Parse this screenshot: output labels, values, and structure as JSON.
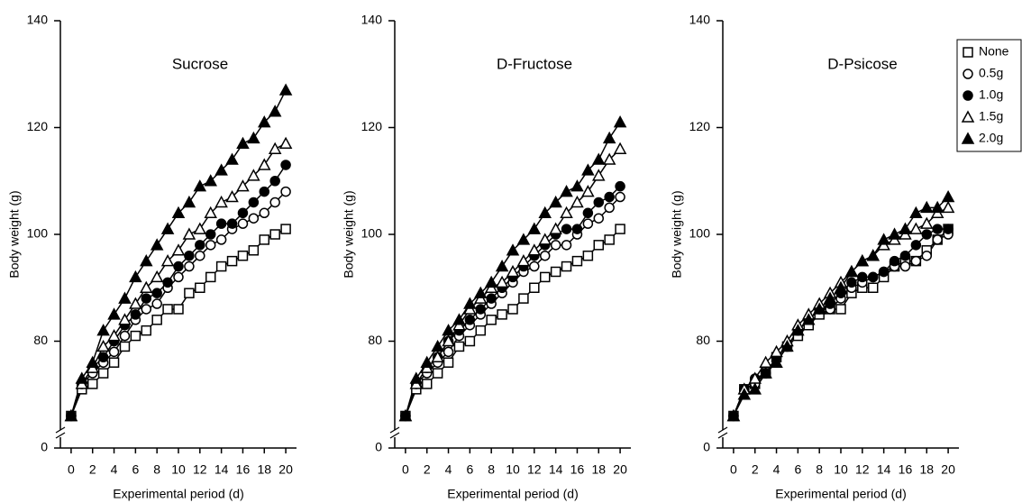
{
  "chart_data": [
    {
      "type": "line",
      "title": "Sucrose",
      "xlabel": "Experimental period (d)",
      "ylabel": "Body weight (g)",
      "x": [
        0,
        1,
        2,
        3,
        4,
        5,
        6,
        7,
        8,
        9,
        10,
        11,
        12,
        13,
        14,
        15,
        16,
        17,
        18,
        19,
        20
      ],
      "xlim": [
        -1,
        21
      ],
      "xticks": [
        0,
        2,
        4,
        6,
        8,
        10,
        12,
        14,
        16,
        18,
        20
      ],
      "ylim": [
        0,
        140
      ],
      "yticks": [
        0,
        80,
        100,
        120,
        140
      ],
      "axis_break": [
        0,
        60
      ],
      "series": [
        {
          "marker": "square",
          "filled": false,
          "color": "#000000",
          "values": [
            66,
            71,
            72,
            74,
            76,
            79,
            81,
            82,
            84,
            86,
            86,
            89,
            90,
            92,
            94,
            95,
            96,
            97,
            99,
            100,
            101
          ]
        },
        {
          "marker": "circle",
          "filled": false,
          "color": "#000000",
          "values": [
            66,
            72,
            74,
            76,
            78,
            81,
            84,
            86,
            87,
            90,
            92,
            94,
            96,
            98,
            99,
            101,
            102,
            103,
            104,
            106,
            108
          ]
        },
        {
          "marker": "circle",
          "filled": true,
          "color": "#000000",
          "values": [
            66,
            72,
            75,
            77,
            80,
            83,
            85,
            88,
            89,
            91,
            94,
            96,
            98,
            100,
            102,
            102,
            104,
            106,
            108,
            110,
            113
          ]
        },
        {
          "marker": "triangle",
          "filled": false,
          "color": "#000000",
          "values": [
            66,
            72,
            75,
            79,
            81,
            84,
            87,
            90,
            92,
            95,
            97,
            100,
            101,
            104,
            106,
            107,
            109,
            111,
            113,
            116,
            117
          ]
        },
        {
          "marker": "triangle",
          "filled": true,
          "color": "#000000",
          "values": [
            66,
            73,
            76,
            82,
            85,
            88,
            92,
            95,
            98,
            101,
            104,
            106,
            109,
            110,
            112,
            114,
            117,
            118,
            121,
            123,
            127
          ]
        }
      ]
    },
    {
      "type": "line",
      "title": "D-Fructose",
      "xlabel": "Experimental period (d)",
      "ylabel": "Body weight (g)",
      "x": [
        0,
        1,
        2,
        3,
        4,
        5,
        6,
        7,
        8,
        9,
        10,
        11,
        12,
        13,
        14,
        15,
        16,
        17,
        18,
        19,
        20
      ],
      "xlim": [
        -1,
        21
      ],
      "xticks": [
        0,
        2,
        4,
        6,
        8,
        10,
        12,
        14,
        16,
        18,
        20
      ],
      "ylim": [
        0,
        140
      ],
      "yticks": [
        0,
        80,
        100,
        120,
        140
      ],
      "axis_break": [
        0,
        60
      ],
      "series": [
        {
          "marker": "square",
          "filled": false,
          "color": "#000000",
          "values": [
            66,
            71,
            72,
            74,
            76,
            79,
            80,
            82,
            84,
            85,
            86,
            88,
            90,
            92,
            93,
            94,
            95,
            96,
            98,
            99,
            101
          ]
        },
        {
          "marker": "circle",
          "filled": false,
          "color": "#000000",
          "values": [
            66,
            72,
            74,
            76,
            78,
            81,
            83,
            85,
            87,
            89,
            91,
            93,
            94,
            96,
            98,
            98,
            100,
            102,
            103,
            105,
            107
          ]
        },
        {
          "marker": "circle",
          "filled": true,
          "color": "#000000",
          "values": [
            66,
            72,
            75,
            77,
            80,
            82,
            84,
            86,
            88,
            90,
            92,
            94,
            96,
            98,
            100,
            101,
            101,
            104,
            106,
            107,
            109
          ]
        },
        {
          "marker": "triangle",
          "filled": false,
          "color": "#000000",
          "values": [
            66,
            72,
            75,
            77,
            80,
            83,
            86,
            88,
            90,
            91,
            93,
            95,
            97,
            99,
            101,
            104,
            106,
            108,
            111,
            114,
            116
          ]
        },
        {
          "marker": "triangle",
          "filled": true,
          "color": "#000000",
          "values": [
            66,
            73,
            76,
            79,
            82,
            84,
            87,
            89,
            91,
            94,
            97,
            99,
            101,
            104,
            106,
            108,
            109,
            112,
            114,
            118,
            121
          ]
        }
      ]
    },
    {
      "type": "line",
      "title": "D-Psicose",
      "xlabel": "Experimental period (d)",
      "ylabel": "Body weight (g)",
      "x": [
        0,
        1,
        2,
        3,
        4,
        5,
        6,
        7,
        8,
        9,
        10,
        11,
        12,
        13,
        14,
        15,
        16,
        17,
        18,
        19,
        20
      ],
      "xlim": [
        -1,
        21
      ],
      "xticks": [
        0,
        2,
        4,
        6,
        8,
        10,
        12,
        14,
        16,
        18,
        20
      ],
      "ylim": [
        0,
        140
      ],
      "yticks": [
        0,
        80,
        100,
        120,
        140
      ],
      "axis_break": [
        0,
        60
      ],
      "legend": "upper right",
      "series": [
        {
          "name": "None",
          "marker": "square",
          "filled": false,
          "color": "#000000",
          "values": [
            66,
            71,
            72,
            74,
            77,
            79,
            81,
            83,
            85,
            86,
            86,
            89,
            90,
            90,
            92,
            94,
            95,
            95,
            97,
            99,
            101
          ]
        },
        {
          "name": "0.5g",
          "marker": "circle",
          "filled": false,
          "color": "#000000",
          "values": [
            66,
            71,
            72,
            74,
            77,
            79,
            82,
            84,
            86,
            86,
            88,
            90,
            91,
            92,
            93,
            94,
            94,
            95,
            96,
            99,
            100
          ]
        },
        {
          "name": "1.0g",
          "marker": "circle",
          "filled": true,
          "color": "#000000",
          "values": [
            66,
            71,
            73,
            74,
            77,
            79,
            82,
            84,
            86,
            87,
            89,
            91,
            92,
            92,
            93,
            95,
            96,
            98,
            100,
            101,
            101
          ]
        },
        {
          "name": "1.5g",
          "marker": "triangle",
          "filled": false,
          "color": "#000000",
          "values": [
            66,
            71,
            73,
            76,
            78,
            80,
            83,
            85,
            87,
            89,
            91,
            93,
            95,
            96,
            98,
            99,
            100,
            101,
            102,
            104,
            105
          ]
        },
        {
          "name": "2.0g",
          "marker": "triangle",
          "filled": true,
          "color": "#000000",
          "values": [
            66,
            70,
            71,
            74,
            76,
            79,
            82,
            84,
            86,
            88,
            90,
            93,
            95,
            96,
            99,
            100,
            101,
            104,
            105,
            105,
            107
          ]
        }
      ]
    }
  ]
}
